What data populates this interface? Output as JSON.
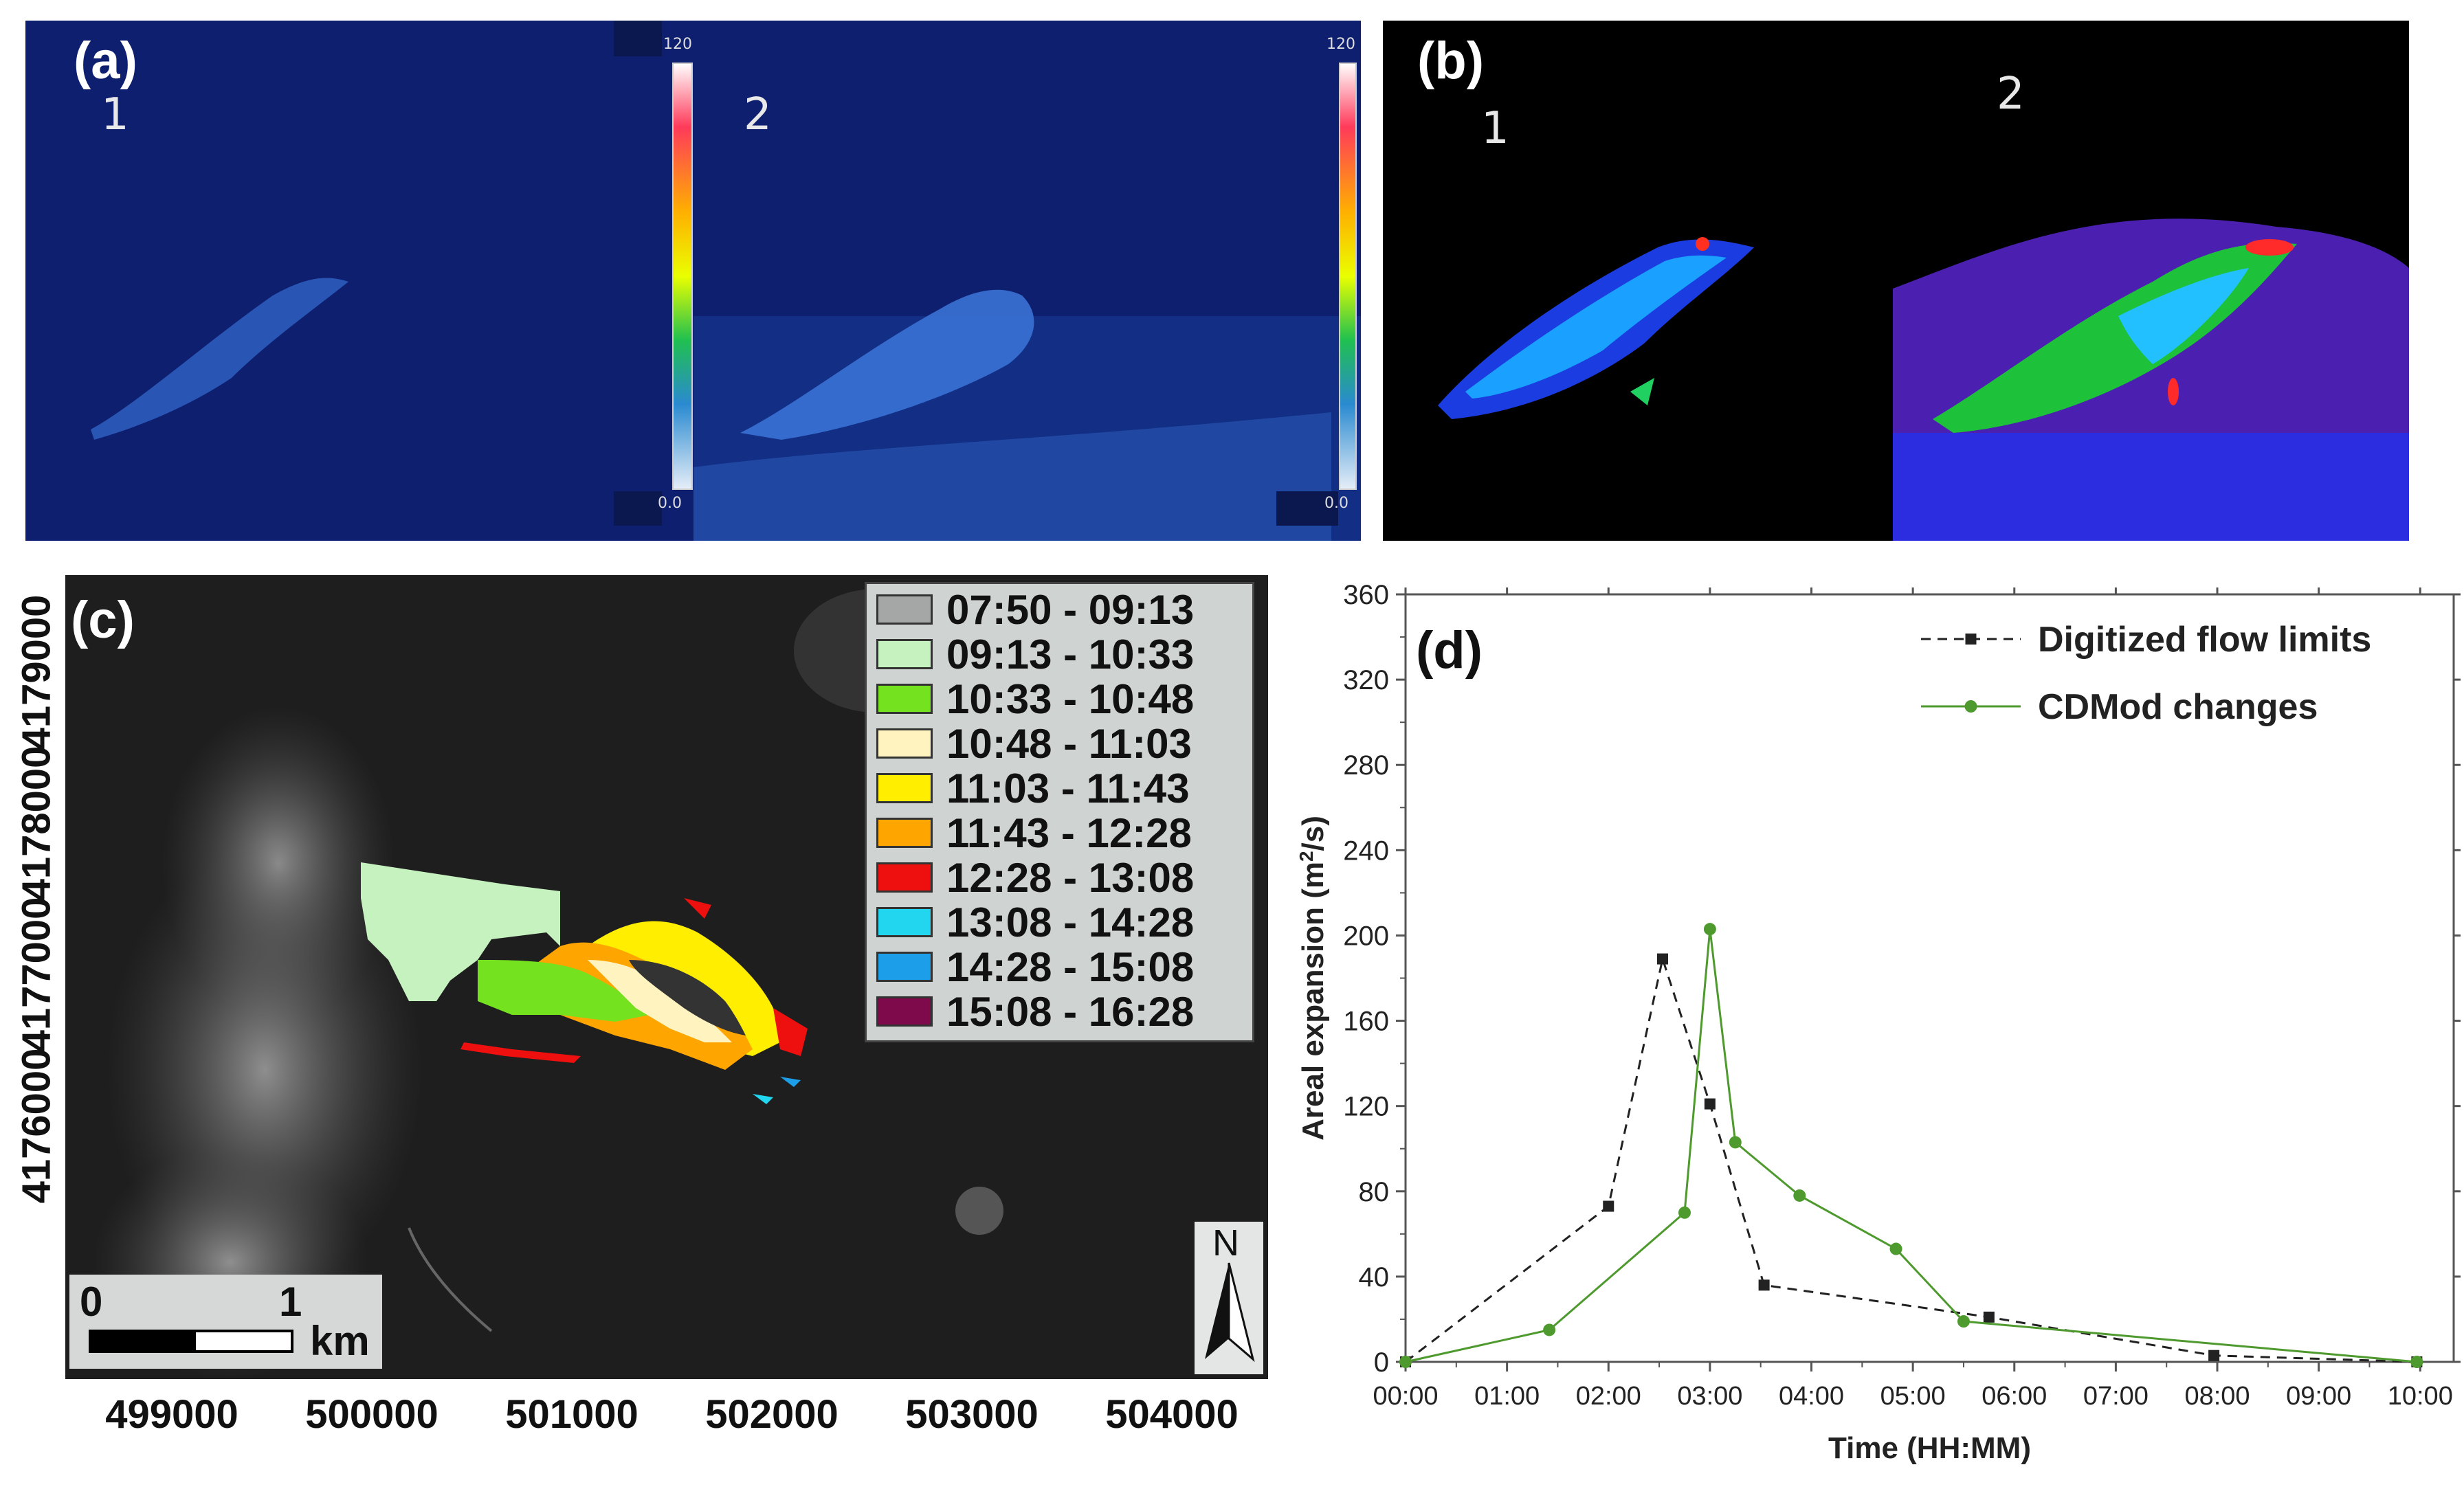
{
  "panels": {
    "a": {
      "label": "(a)",
      "frame1": "1",
      "frame2": "2",
      "colorbar_max": "120",
      "colorbar_min": "0.0"
    },
    "b": {
      "label": "(b)",
      "frame1": "1",
      "frame2": "2"
    },
    "c": {
      "label": "(c)",
      "legend": [
        {
          "label": "07:50 - 09:13",
          "color": "#a4a7a5"
        },
        {
          "label": "09:13 - 10:33",
          "color": "#c6f2bf"
        },
        {
          "label": "10:33 - 10:48",
          "color": "#74e21f"
        },
        {
          "label": "10:48 - 11:03",
          "color": "#fff4c0"
        },
        {
          "label": "11:03 - 11:43",
          "color": "#ffee00"
        },
        {
          "label": "11:43 - 12:28",
          "color": "#ffa500"
        },
        {
          "label": "12:28 - 13:08",
          "color": "#ee0f0f"
        },
        {
          "label": "13:08 - 14:28",
          "color": "#23d6f0"
        },
        {
          "label": "14:28 - 15:08",
          "color": "#1d9ee8"
        },
        {
          "label": "15:08 - 16:28",
          "color": "#7e0a4b"
        }
      ],
      "x_ticks": [
        "499000",
        "500000",
        "501000",
        "502000",
        "503000",
        "504000"
      ],
      "y_ticks": [
        "4179000",
        "4178000",
        "4177000",
        "4176000"
      ],
      "scale_start": "0",
      "scale_end": "1",
      "scale_unit": "km",
      "north": "N"
    },
    "d": {
      "label": "(d)"
    }
  },
  "chart_data": {
    "type": "line",
    "xlabel": "Time (HH:MM)",
    "ylabel": "Areal expansion (m²/s)",
    "ylabel_base": "Areal expansion (m",
    "ylabel_sup": "2",
    "ylabel_end": "/s)",
    "x_tick_labels": [
      "00:00",
      "01:00",
      "02:00",
      "03:00",
      "04:00",
      "05:00",
      "06:00",
      "07:00",
      "08:00",
      "09:00",
      "10:00"
    ],
    "y_ticks": [
      0,
      40,
      80,
      120,
      160,
      200,
      240,
      280,
      320,
      360
    ],
    "xlim_hours": [
      0,
      10.33
    ],
    "ylim": [
      0,
      360
    ],
    "legend_position": "top-right",
    "series": [
      {
        "name": "Digitized flow limits",
        "color": "#222222",
        "dashed": true,
        "marker": "square",
        "x": [
          "00:00",
          "02:00",
          "02:32",
          "03:00",
          "03:32",
          "05:45",
          "07:58",
          "09:58"
        ],
        "y": [
          0,
          73,
          189,
          121,
          36,
          21,
          3,
          0
        ]
      },
      {
        "name": "CDMod changes",
        "color": "#4e9a2e",
        "dashed": false,
        "marker": "circle",
        "x": [
          "00:00",
          "01:25",
          "02:45",
          "03:00",
          "03:15",
          "03:53",
          "04:50",
          "05:30",
          "09:58"
        ],
        "y": [
          0,
          15,
          70,
          203,
          103,
          78,
          53,
          19,
          0
        ]
      }
    ]
  }
}
